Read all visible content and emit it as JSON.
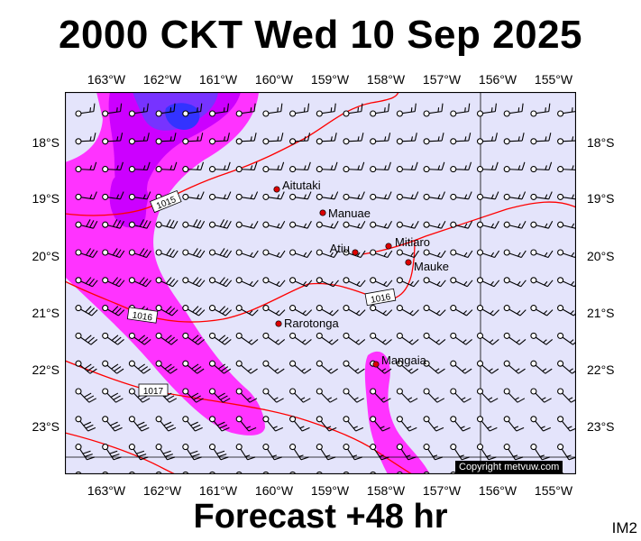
{
  "title": "2000 CKT Wed 10 Sep 2025",
  "footer": "Forecast +48 hr",
  "im_label": "IM2",
  "copyright": "Copyright metvuw.com",
  "colors": {
    "sea": "#e4e4fb",
    "rain_light": "#ff33ff",
    "rain_medium": "#cc00ff",
    "rain_heavy": "#7733ff",
    "rain_extreme": "#3333ff",
    "isobar": "#ff0000",
    "island": "#dd0000"
  },
  "lon_ticks": [
    "163°W",
    "162°W",
    "161°W",
    "160°W",
    "159°W",
    "158°W",
    "157°W",
    "156°W",
    "155°W"
  ],
  "lat_ticks": [
    "18°S",
    "19°S",
    "20°S",
    "21°S",
    "22°S",
    "23°S"
  ],
  "isobar_labels": [
    "1015",
    "1016",
    "1016",
    "1017"
  ],
  "islands": [
    {
      "name": "Aitutaki"
    },
    {
      "name": "Manuae"
    },
    {
      "name": "Atiu"
    },
    {
      "name": "Mitiaro"
    },
    {
      "name": "Mauke"
    },
    {
      "name": "Rarotonga"
    },
    {
      "name": "Mangaia"
    }
  ]
}
